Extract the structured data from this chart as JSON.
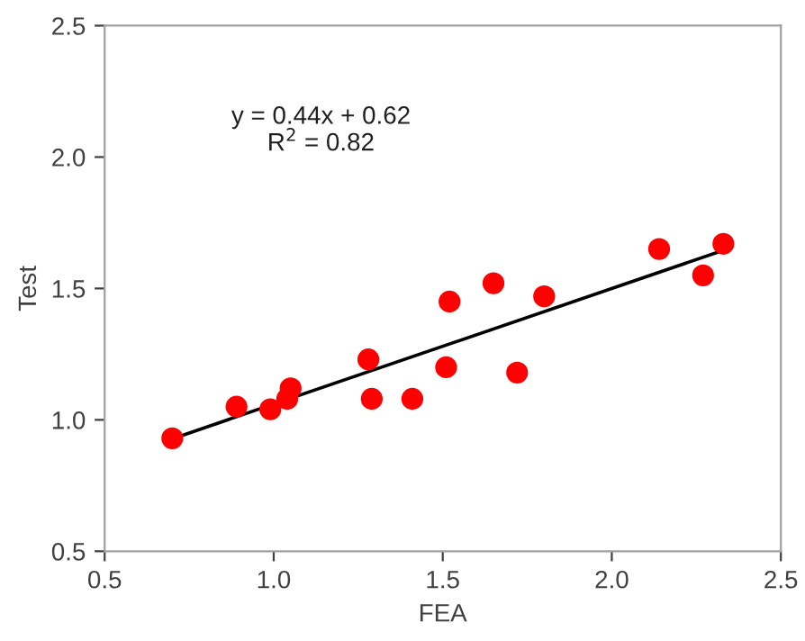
{
  "chart_data": {
    "type": "scatter",
    "xlabel": "FEA",
    "ylabel": "Test",
    "xlim": [
      0.5,
      2.5
    ],
    "ylim": [
      0.5,
      2.5
    ],
    "xticks": [
      0.5,
      {
        "value": 1,
        "label": "1.0"
      },
      1.5,
      {
        "value": 2,
        "label": "2.0"
      },
      2.5
    ],
    "yticks": [
      0.5,
      {
        "value": 1,
        "label": "1.0"
      },
      1.5,
      {
        "value": 2,
        "label": "2.0"
      },
      2.5
    ],
    "grid": false,
    "legend": false,
    "marker": "circle",
    "annotations": [
      "y = 0.44x + 0.62\nR$^{2}$ = 0.82"
    ],
    "series": [
      {
        "color": "#ff0000",
        "x": [
          0.7,
          0.89,
          0.99,
          1.04,
          1.05,
          1.28,
          1.29,
          1.41,
          1.51,
          1.52,
          1.65,
          1.72,
          1.8,
          2.14,
          2.27,
          2.33
        ],
        "values": [
          0.93,
          1.05,
          1.04,
          1.08,
          1.12,
          1.23,
          1.08,
          1.08,
          1.2,
          1.45,
          1.52,
          1.18,
          1.47,
          1.65,
          1.55,
          1.67
        ]
      },
      {
        "type": "line",
        "color": "#000000",
        "x": [
          0.7,
          2.33
        ],
        "values": [
          0.928,
          1.645
        ],
        "marker": "none",
        "line_style": "solid"
      }
    ]
  }
}
